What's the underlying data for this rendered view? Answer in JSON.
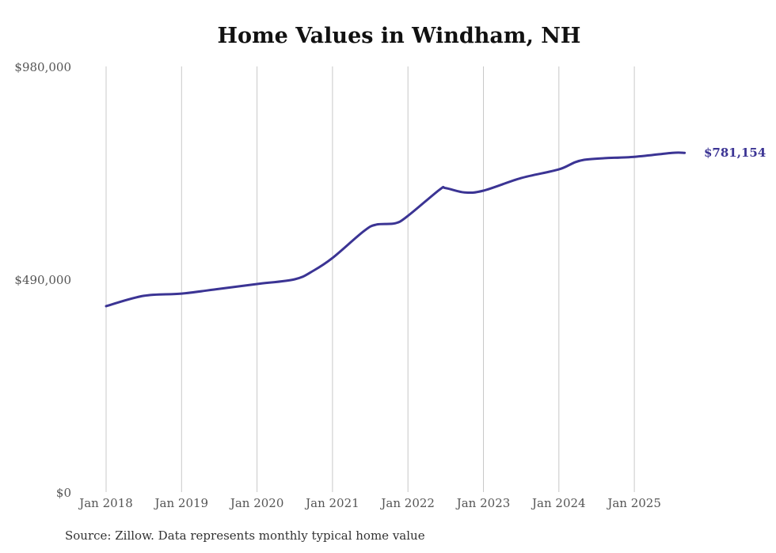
{
  "chart_data": {
    "type": "line",
    "title": "Home Values in Windham, NH",
    "xlabel": "",
    "ylabel": "",
    "ylim": [
      0,
      980000
    ],
    "y_ticks": [
      "$980,000",
      "$490,000",
      "$0"
    ],
    "y_tick_values": [
      980000,
      490000,
      0
    ],
    "x_ticks": [
      "Jan 2018",
      "Jan 2019",
      "Jan 2020",
      "Jan 2021",
      "Jan 2022",
      "Jan 2023",
      "Jan 2024",
      "Jan 2025"
    ],
    "grid": "vertical",
    "legend": "none",
    "series": [
      {
        "name": "Typical home value",
        "color": "#3b3494",
        "x": [
          "2018-01",
          "2018-07",
          "2019-01",
          "2019-07",
          "2020-01",
          "2020-07",
          "2020-10",
          "2021-01",
          "2021-06",
          "2021-08",
          "2021-11",
          "2022-01",
          "2022-06",
          "2022-07",
          "2022-10",
          "2023-01",
          "2023-07",
          "2024-01",
          "2024-05",
          "2025-01",
          "2025-07",
          "2025-09"
        ],
        "values": [
          428000,
          452000,
          457000,
          468000,
          479000,
          490000,
          510000,
          539000,
          601000,
          616000,
          619000,
          636000,
          696000,
          700000,
          690000,
          694000,
          723000,
          743000,
          765000,
          772000,
          781000,
          781154
        ]
      }
    ],
    "annotations": [
      {
        "text": "$781,154",
        "at": "2025-09"
      }
    ]
  },
  "title": "Home Values in Windham, NH",
  "end_label": "$781,154",
  "source": "Source: Zillow. Data represents monthly typical home value",
  "colors": {
    "line": "#3b3494",
    "grid": "#c8c8c8",
    "axis_text": "#555555"
  }
}
